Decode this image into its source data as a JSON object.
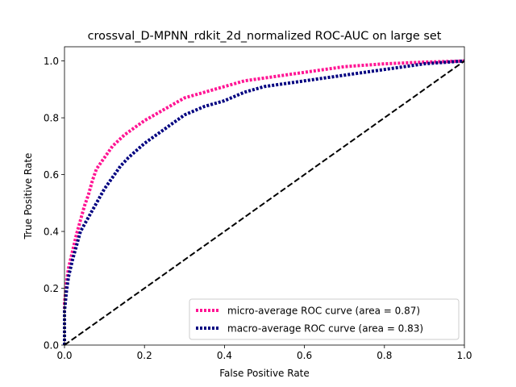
{
  "chart_data": {
    "type": "line",
    "title": "crossval_D-MPNN_rdkit_2d_normalized ROC-AUC on large set",
    "xlabel": "False Positive Rate",
    "ylabel": "True Positive Rate",
    "xlim": [
      0.0,
      1.0
    ],
    "ylim": [
      0.0,
      1.05
    ],
    "xticks": [
      "0.0",
      "0.2",
      "0.4",
      "0.6",
      "0.8",
      "1.0"
    ],
    "yticks": [
      "0.0",
      "0.2",
      "0.4",
      "0.6",
      "0.8",
      "1.0"
    ],
    "grid": false,
    "legend_position": "lower-right",
    "series": [
      {
        "name": "micro-average ROC curve (area = 0.87)",
        "color": "#ff1493",
        "style": "dotted",
        "x": [
          0.0,
          0.0,
          0.005,
          0.01,
          0.02,
          0.03,
          0.04,
          0.05,
          0.06,
          0.07,
          0.08,
          0.1,
          0.12,
          0.15,
          0.18,
          0.2,
          0.25,
          0.3,
          0.35,
          0.4,
          0.45,
          0.5,
          0.55,
          0.6,
          0.65,
          0.7,
          0.75,
          0.8,
          0.85,
          0.9,
          0.95,
          1.0
        ],
        "y": [
          0.0,
          0.15,
          0.22,
          0.27,
          0.33,
          0.39,
          0.44,
          0.49,
          0.53,
          0.58,
          0.62,
          0.66,
          0.7,
          0.74,
          0.77,
          0.79,
          0.83,
          0.87,
          0.89,
          0.91,
          0.93,
          0.94,
          0.95,
          0.96,
          0.97,
          0.98,
          0.985,
          0.99,
          0.993,
          0.996,
          0.998,
          1.0
        ]
      },
      {
        "name": "macro-average ROC curve (area = 0.83)",
        "color": "#000080",
        "style": "dotted",
        "x": [
          0.0,
          0.0,
          0.005,
          0.01,
          0.02,
          0.03,
          0.04,
          0.06,
          0.08,
          0.1,
          0.12,
          0.14,
          0.16,
          0.2,
          0.25,
          0.3,
          0.35,
          0.4,
          0.45,
          0.5,
          0.55,
          0.6,
          0.65,
          0.7,
          0.75,
          0.8,
          0.85,
          0.9,
          0.95,
          1.0
        ],
        "y": [
          0.0,
          0.12,
          0.19,
          0.24,
          0.3,
          0.35,
          0.4,
          0.45,
          0.5,
          0.55,
          0.59,
          0.63,
          0.66,
          0.71,
          0.76,
          0.81,
          0.84,
          0.86,
          0.89,
          0.91,
          0.92,
          0.93,
          0.94,
          0.95,
          0.96,
          0.97,
          0.98,
          0.99,
          0.995,
          1.0
        ]
      },
      {
        "name": "",
        "color": "#000000",
        "style": "dashed",
        "x": [
          0.0,
          1.0
        ],
        "y": [
          0.0,
          1.0
        ]
      }
    ]
  }
}
